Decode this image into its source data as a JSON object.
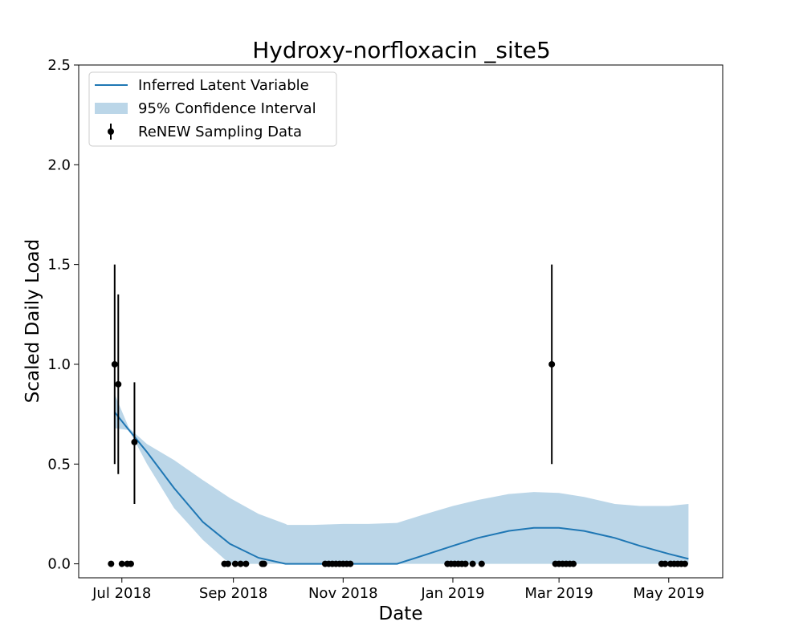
{
  "chart_data": {
    "type": "line",
    "title": "Hydroxy-norfloxacin _site5",
    "xlabel": "Date",
    "ylabel": "Scaled Daily Load",
    "ylim": [
      -0.07,
      2.5
    ],
    "xlim": [
      "2018-06-07",
      "2019-05-31"
    ],
    "yticks": [
      0.0,
      0.5,
      1.0,
      1.5,
      2.0,
      2.5
    ],
    "ytick_labels": [
      "0.0",
      "0.5",
      "1.0",
      "1.5",
      "2.0",
      "2.5"
    ],
    "xticks": [
      "2018-07-01",
      "2018-09-01",
      "2018-11-01",
      "2019-01-01",
      "2019-03-01",
      "2019-05-01"
    ],
    "xtick_labels": [
      "Jul 2018",
      "Sep 2018",
      "Nov 2018",
      "Jan 2019",
      "Mar 2019",
      "May 2019"
    ],
    "grid": false,
    "legend_position": "top-left",
    "legend": [
      {
        "label": "Inferred Latent Variable",
        "kind": "line",
        "color": "#1f77b4"
      },
      {
        "label": "95% Confidence Interval",
        "kind": "band",
        "color": "#1f77b4"
      },
      {
        "label": "ReNEW Sampling Data",
        "kind": "errorbar",
        "color": "#000000"
      }
    ],
    "series": [
      {
        "name": "Inferred Latent Variable",
        "kind": "line",
        "color": "#1f77b4",
        "x": [
          "2018-06-27",
          "2018-07-05",
          "2018-07-15",
          "2018-07-30",
          "2018-08-15",
          "2018-08-30",
          "2018-09-15",
          "2018-09-30",
          "2018-10-01",
          "2018-10-15",
          "2018-11-01",
          "2018-11-15",
          "2018-12-01",
          "2018-12-15",
          "2019-01-01",
          "2019-01-15",
          "2019-02-01",
          "2019-02-15",
          "2019-03-01",
          "2019-03-15",
          "2019-04-01",
          "2019-04-15",
          "2019-05-01",
          "2019-05-12"
        ],
        "y": [
          0.76,
          0.67,
          0.56,
          0.38,
          0.21,
          0.1,
          0.03,
          0.0,
          0.0,
          0.0,
          0.0,
          0.0,
          0.0,
          0.04,
          0.09,
          0.13,
          0.165,
          0.18,
          0.18,
          0.165,
          0.13,
          0.09,
          0.05,
          0.025
        ]
      },
      {
        "name": "95% Confidence Interval",
        "kind": "band",
        "color": "#1f77b4",
        "x": [
          "2018-06-27",
          "2018-07-05",
          "2018-07-15",
          "2018-07-30",
          "2018-08-15",
          "2018-08-30",
          "2018-09-15",
          "2018-09-30",
          "2018-10-01",
          "2018-10-15",
          "2018-11-01",
          "2018-11-15",
          "2018-12-01",
          "2018-12-15",
          "2019-01-01",
          "2019-01-15",
          "2019-02-01",
          "2019-02-15",
          "2019-03-01",
          "2019-03-15",
          "2019-04-01",
          "2019-04-15",
          "2019-05-01",
          "2019-05-12"
        ],
        "lower": [
          0.68,
          0.67,
          0.5,
          0.28,
          0.12,
          0.0,
          0.0,
          0.0,
          0.0,
          0.0,
          0.0,
          0.0,
          0.0,
          0.0,
          0.0,
          0.0,
          0.0,
          0.0,
          0.0,
          0.0,
          0.0,
          0.0,
          0.0,
          0.0
        ],
        "upper": [
          0.85,
          0.68,
          0.6,
          0.52,
          0.42,
          0.33,
          0.25,
          0.2,
          0.195,
          0.195,
          0.2,
          0.2,
          0.205,
          0.245,
          0.29,
          0.32,
          0.35,
          0.36,
          0.355,
          0.335,
          0.3,
          0.29,
          0.29,
          0.3
        ]
      },
      {
        "name": "ReNEW Sampling Data",
        "kind": "errorbar",
        "color": "#000000",
        "points": [
          {
            "x": "2018-06-25",
            "y": 0.0
          },
          {
            "x": "2018-06-27",
            "y": 1.0,
            "lo": 0.5,
            "hi": 1.5
          },
          {
            "x": "2018-06-29",
            "y": 0.9,
            "lo": 0.45,
            "hi": 1.35
          },
          {
            "x": "2018-07-01",
            "y": 0.0
          },
          {
            "x": "2018-07-04",
            "y": 0.0
          },
          {
            "x": "2018-07-06",
            "y": 0.0
          },
          {
            "x": "2018-07-08",
            "y": 0.61,
            "lo": 0.3,
            "hi": 0.91
          },
          {
            "x": "2018-08-27",
            "y": 0.0
          },
          {
            "x": "2018-08-29",
            "y": 0.0
          },
          {
            "x": "2018-09-02",
            "y": 0.0
          },
          {
            "x": "2018-09-05",
            "y": 0.0
          },
          {
            "x": "2018-09-08",
            "y": 0.0
          },
          {
            "x": "2018-09-17",
            "y": 0.0
          },
          {
            "x": "2018-09-18",
            "y": 0.0
          },
          {
            "x": "2018-10-22",
            "y": 0.0
          },
          {
            "x": "2018-10-24",
            "y": 0.0
          },
          {
            "x": "2018-10-26",
            "y": 0.0
          },
          {
            "x": "2018-10-28",
            "y": 0.0
          },
          {
            "x": "2018-10-30",
            "y": 0.0
          },
          {
            "x": "2018-11-01",
            "y": 0.0
          },
          {
            "x": "2018-11-03",
            "y": 0.0
          },
          {
            "x": "2018-11-05",
            "y": 0.0
          },
          {
            "x": "2018-12-29",
            "y": 0.0
          },
          {
            "x": "2018-12-31",
            "y": 0.0
          },
          {
            "x": "2019-01-02",
            "y": 0.0
          },
          {
            "x": "2019-01-04",
            "y": 0.0
          },
          {
            "x": "2019-01-06",
            "y": 0.0
          },
          {
            "x": "2019-01-08",
            "y": 0.0
          },
          {
            "x": "2019-01-12",
            "y": 0.0
          },
          {
            "x": "2019-01-17",
            "y": 0.0
          },
          {
            "x": "2019-02-25",
            "y": 1.0,
            "lo": 0.5,
            "hi": 1.5
          },
          {
            "x": "2019-02-27",
            "y": 0.0
          },
          {
            "x": "2019-03-01",
            "y": 0.0
          },
          {
            "x": "2019-03-03",
            "y": 0.0
          },
          {
            "x": "2019-03-05",
            "y": 0.0
          },
          {
            "x": "2019-03-07",
            "y": 0.0
          },
          {
            "x": "2019-03-09",
            "y": 0.0
          },
          {
            "x": "2019-04-27",
            "y": 0.0
          },
          {
            "x": "2019-04-29",
            "y": 0.0
          },
          {
            "x": "2019-05-02",
            "y": 0.0
          },
          {
            "x": "2019-05-04",
            "y": 0.0
          },
          {
            "x": "2019-05-06",
            "y": 0.0
          },
          {
            "x": "2019-05-08",
            "y": 0.0
          },
          {
            "x": "2019-05-10",
            "y": 0.0
          }
        ]
      }
    ]
  }
}
